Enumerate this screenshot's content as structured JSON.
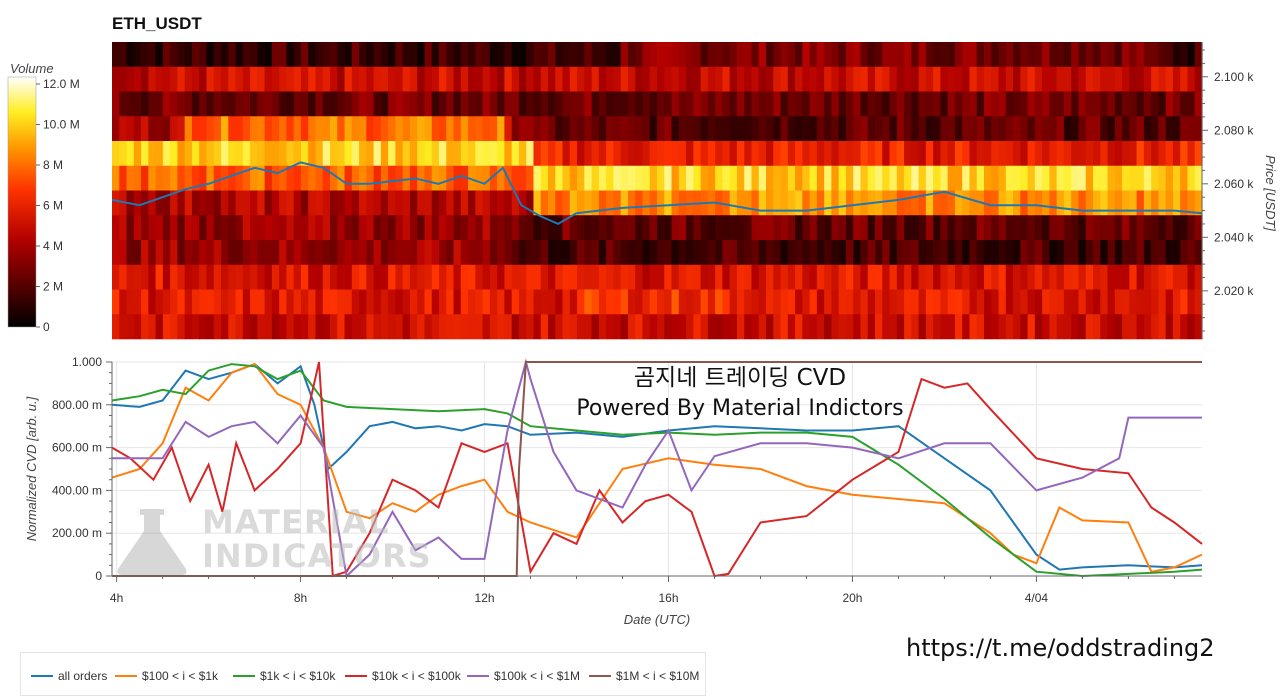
{
  "title": "ETH_USDT",
  "colorbar": {
    "label": "Volume",
    "ticks": [
      "12.0 M",
      "10.0 M",
      "8 M",
      "6 M",
      "4 M",
      "2 M",
      "0"
    ]
  },
  "heatmap": {
    "y_label": "Price [USDT]",
    "y_ticks": [
      "2.100 k",
      "2.080 k",
      "2.060 k",
      "2.040 k",
      "2.020 k"
    ]
  },
  "cvd": {
    "y_label": "Normalized CVD [arb. u.]",
    "y_ticks": [
      "1.000",
      "800.00 m",
      "600.00 m",
      "400.00 m",
      "200.00 m",
      "0"
    ],
    "x_ticks": [
      "4h",
      "8h",
      "12h",
      "16h",
      "20h",
      "4/04"
    ],
    "x_label": "Date (UTC)"
  },
  "watermark": {
    "title": "곰지네 트레이딩 CVD",
    "subtitle": "Powered By Material Indictors",
    "logo_line1": "MATERIAL",
    "logo_line2": "INDICATORS"
  },
  "link": "https://t.me/oddstrading2",
  "legend": [
    {
      "name": "all orders",
      "color": "#1f77b4"
    },
    {
      "name": "$100 < i < $1k",
      "color": "#ff7f0e"
    },
    {
      "name": "$1k < i < $10k",
      "color": "#2ca02c"
    },
    {
      "name": "$10k < i < $100k",
      "color": "#d62728"
    },
    {
      "name": "$100k < i < $1M",
      "color": "#9467bd"
    },
    {
      "name": "$1M < i < $10M",
      "color": "#8c564b"
    }
  ],
  "chart_data": [
    {
      "type": "heatmap",
      "title": "ETH_USDT",
      "ylabel": "Price [USDT]",
      "x_range_hours": [
        3.9,
        27.6
      ],
      "ylim": [
        2002,
        2113
      ],
      "price_levels": [
        2110,
        2100,
        2090,
        2080,
        2070,
        2060,
        2050,
        2040,
        2030,
        2020,
        2010,
        2005
      ],
      "colorbar": {
        "label": "Volume",
        "range": [
          0,
          12000000
        ]
      },
      "price_line": {
        "hours": [
          3.9,
          4.5,
          5.0,
          5.5,
          6.0,
          6.5,
          7.0,
          7.5,
          8.0,
          8.5,
          9.0,
          9.5,
          10.0,
          10.5,
          11.0,
          11.5,
          12.0,
          12.4,
          12.8,
          13.2,
          13.6,
          14.0,
          15.0,
          16.0,
          17.0,
          18.0,
          19.0,
          20.0,
          21.0,
          22.0,
          23.0,
          24.0,
          25.0,
          26.0,
          27.0,
          27.6
        ],
        "prices": [
          2054,
          2052,
          2055,
          2058,
          2060,
          2063,
          2066,
          2064,
          2068,
          2066,
          2060,
          2060,
          2061,
          2062,
          2060,
          2063,
          2060,
          2066,
          2052,
          2048,
          2045,
          2049,
          2051,
          2052,
          2053,
          2050,
          2050,
          2052,
          2054,
          2057,
          2052,
          2052,
          2050,
          2050,
          2050,
          2049
        ]
      }
    },
    {
      "type": "line",
      "xlabel": "Date (UTC)",
      "ylabel": "Normalized CVD [arb. u.]",
      "x_tick_labels": [
        "4h",
        "8h",
        "12h",
        "16h",
        "20h",
        "4/04"
      ],
      "xlim": [
        3.9,
        27.6
      ],
      "ylim": [
        0,
        1
      ],
      "series": [
        {
          "name": "all orders",
          "color": "#1f77b4",
          "x": [
            3.9,
            4.5,
            5.0,
            5.5,
            6.0,
            6.5,
            7.0,
            7.5,
            8.0,
            8.3,
            8.6,
            9.0,
            9.5,
            10.0,
            10.5,
            11.0,
            11.5,
            12.0,
            12.5,
            13.0,
            14.0,
            15.0,
            16.0,
            17.0,
            18.0,
            19.0,
            20.0,
            21.0,
            22.0,
            23.0,
            24.0,
            24.5,
            25.0,
            26.0,
            27.0,
            27.6
          ],
          "y": [
            0.8,
            0.79,
            0.82,
            0.96,
            0.92,
            0.95,
            0.99,
            0.9,
            0.98,
            0.8,
            0.5,
            0.58,
            0.7,
            0.72,
            0.69,
            0.7,
            0.68,
            0.71,
            0.7,
            0.66,
            0.67,
            0.65,
            0.68,
            0.7,
            0.69,
            0.68,
            0.68,
            0.7,
            0.55,
            0.4,
            0.1,
            0.03,
            0.04,
            0.05,
            0.04,
            0.05
          ]
        },
        {
          "name": "$100 < i < $1k",
          "color": "#ff7f0e",
          "x": [
            3.9,
            4.5,
            5.0,
            5.5,
            6.0,
            6.5,
            7.0,
            7.5,
            8.0,
            8.5,
            9.0,
            9.5,
            10.0,
            10.5,
            11.0,
            11.5,
            12.0,
            12.5,
            13.0,
            14.0,
            15.0,
            16.0,
            17.0,
            18.0,
            19.0,
            20.0,
            21.0,
            22.0,
            23.0,
            23.5,
            24.0,
            24.5,
            25.0,
            26.0,
            26.5,
            27.0,
            27.6
          ],
          "y": [
            0.46,
            0.5,
            0.62,
            0.88,
            0.82,
            0.95,
            0.99,
            0.85,
            0.8,
            0.6,
            0.3,
            0.27,
            0.34,
            0.3,
            0.38,
            0.42,
            0.45,
            0.3,
            0.25,
            0.18,
            0.5,
            0.55,
            0.52,
            0.5,
            0.42,
            0.38,
            0.36,
            0.34,
            0.2,
            0.1,
            0.06,
            0.32,
            0.26,
            0.25,
            0.02,
            0.04,
            0.1
          ]
        },
        {
          "name": "$1k < i < $10k",
          "color": "#2ca02c",
          "x": [
            3.9,
            4.5,
            5.0,
            5.5,
            6.0,
            6.5,
            7.0,
            7.5,
            8.0,
            8.5,
            9.0,
            10.0,
            11.0,
            12.0,
            12.5,
            13.0,
            14.0,
            15.0,
            16.0,
            17.0,
            18.0,
            19.0,
            20.0,
            21.0,
            22.0,
            23.0,
            24.0,
            25.0,
            26.0,
            27.0,
            27.6
          ],
          "y": [
            0.82,
            0.84,
            0.87,
            0.85,
            0.96,
            0.99,
            0.98,
            0.92,
            0.96,
            0.82,
            0.79,
            0.78,
            0.77,
            0.78,
            0.76,
            0.7,
            0.68,
            0.66,
            0.67,
            0.66,
            0.67,
            0.67,
            0.65,
            0.52,
            0.36,
            0.18,
            0.02,
            0.0,
            0.01,
            0.02,
            0.03
          ]
        },
        {
          "name": "$10k < i < $100k",
          "color": "#d62728",
          "x": [
            3.9,
            4.3,
            4.8,
            5.2,
            5.6,
            6.0,
            6.3,
            6.6,
            7.0,
            7.5,
            8.0,
            8.4,
            8.7,
            9.0,
            9.5,
            10.0,
            10.5,
            11.0,
            11.5,
            12.0,
            12.5,
            13.0,
            13.5,
            14.0,
            14.5,
            15.0,
            15.5,
            16.0,
            16.5,
            17.0,
            17.3,
            18.0,
            19.0,
            20.0,
            21.0,
            21.5,
            22.0,
            22.5,
            23.0,
            24.0,
            25.0,
            26.0,
            26.5,
            27.0,
            27.6
          ],
          "y": [
            0.6,
            0.55,
            0.45,
            0.6,
            0.35,
            0.52,
            0.3,
            0.62,
            0.4,
            0.5,
            0.62,
            1.0,
            0.0,
            0.02,
            0.2,
            0.45,
            0.4,
            0.32,
            0.62,
            0.58,
            0.62,
            0.02,
            0.2,
            0.15,
            0.4,
            0.25,
            0.35,
            0.38,
            0.3,
            0.0,
            0.01,
            0.25,
            0.28,
            0.45,
            0.58,
            0.92,
            0.88,
            0.9,
            0.78,
            0.55,
            0.5,
            0.48,
            0.32,
            0.25,
            0.15
          ]
        },
        {
          "name": "$100k < i < $1M",
          "color": "#9467bd",
          "x": [
            3.9,
            5.0,
            5.5,
            6.0,
            6.5,
            7.0,
            7.5,
            8.0,
            8.5,
            9.0,
            9.5,
            10.0,
            10.5,
            11.0,
            11.5,
            12.0,
            12.5,
            12.9,
            13.0,
            13.5,
            14.0,
            15.0,
            15.5,
            16.0,
            16.5,
            17.0,
            18.0,
            19.0,
            20.0,
            21.0,
            22.0,
            23.0,
            24.0,
            25.0,
            25.8,
            26.0,
            27.0,
            27.6
          ],
          "y": [
            0.55,
            0.55,
            0.72,
            0.65,
            0.7,
            0.72,
            0.62,
            0.75,
            0.6,
            0.0,
            0.1,
            0.3,
            0.12,
            0.18,
            0.08,
            0.08,
            0.68,
            1.0,
            0.92,
            0.58,
            0.4,
            0.32,
            0.52,
            0.68,
            0.4,
            0.56,
            0.62,
            0.62,
            0.6,
            0.55,
            0.62,
            0.62,
            0.4,
            0.46,
            0.55,
            0.74,
            0.74,
            0.74
          ]
        },
        {
          "name": "$1M < i < $10M",
          "color": "#8c564b",
          "x": [
            3.9,
            12.7,
            12.75,
            12.9,
            27.6
          ],
          "y": [
            0.0,
            0.0,
            0.5,
            1.0,
            1.0
          ]
        }
      ]
    }
  ]
}
